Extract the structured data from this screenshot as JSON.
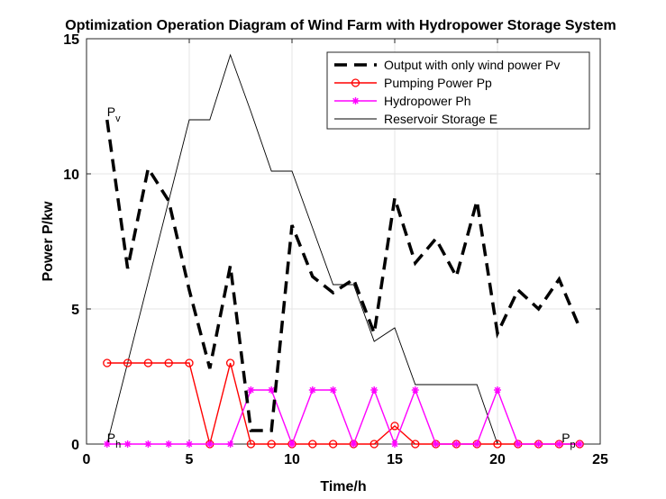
{
  "chart_data": {
    "type": "line",
    "title": "Optimization Operation Diagram of Wind Farm with Hydropower Storage System",
    "xlabel": "Time/h",
    "ylabel": "Power P/kw",
    "xlim": [
      0,
      25
    ],
    "ylim": [
      0,
      15
    ],
    "xticks": [
      "0",
      "5",
      "10",
      "15",
      "20",
      "25"
    ],
    "yticks": [
      "0",
      "5",
      "10",
      "15"
    ],
    "grid": true,
    "legend_position": "top-right",
    "x": [
      1,
      2,
      3,
      4,
      5,
      6,
      7,
      8,
      9,
      10,
      11,
      12,
      13,
      14,
      15,
      16,
      17,
      18,
      19,
      20,
      21,
      22,
      23,
      24
    ],
    "series": [
      {
        "name": "Output with only wind power Pv",
        "color": "#000000",
        "style": "dashed-thick",
        "values": [
          12,
          6.5,
          10.2,
          9,
          5.7,
          2.8,
          6.6,
          0.5,
          0.5,
          8.1,
          6.2,
          5.6,
          6.1,
          4.1,
          9.1,
          6.7,
          7.6,
          6.2,
          9,
          4.1,
          5.7,
          5,
          6.1,
          4.3
        ]
      },
      {
        "name": "Pumping Power Pp",
        "color": "#ff0000",
        "style": "line-circle",
        "values": [
          3,
          3,
          3,
          3,
          3,
          0,
          3,
          0,
          0,
          0,
          0,
          0,
          0,
          0,
          0.67,
          0,
          0,
          0,
          0,
          0,
          0,
          0,
          0,
          0
        ]
      },
      {
        "name": "Hydropower Ph",
        "color": "#ff00ff",
        "style": "line-star",
        "values": [
          0,
          0,
          0,
          0,
          0,
          0,
          0,
          2,
          2,
          0,
          2,
          2,
          0,
          2,
          0,
          2,
          0,
          0,
          0,
          2,
          0,
          0,
          0,
          0
        ]
      },
      {
        "name": "Reservoir Storage E",
        "color": "#000000",
        "style": "thin",
        "values": [
          0,
          3,
          6,
          9,
          12,
          12,
          14.4,
          12.3,
          10.1,
          10.1,
          8,
          5.9,
          5.9,
          3.8,
          4.3,
          2.2,
          2.2,
          2.2,
          2.2,
          0,
          0,
          0,
          0,
          0
        ]
      }
    ],
    "annotations": [
      {
        "text": "P",
        "sub": "v",
        "x": 1,
        "y": 12
      },
      {
        "text": "P",
        "sub": "h",
        "x": 1,
        "y": 0
      },
      {
        "text": "P",
        "sub": "p",
        "x": 24,
        "y": 0
      }
    ]
  }
}
